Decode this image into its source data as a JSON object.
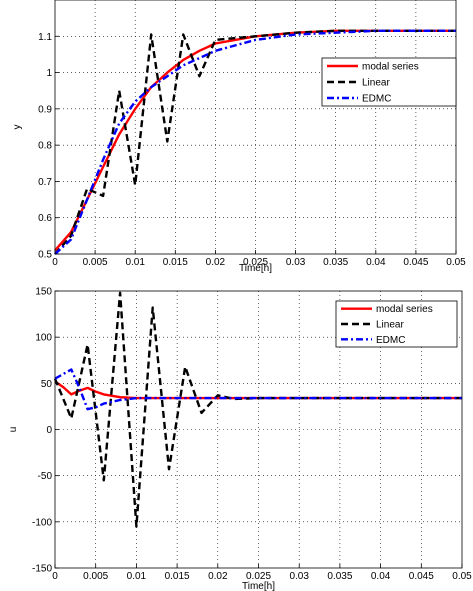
{
  "chart_data": [
    {
      "type": "line",
      "title": "",
      "xlabel": "Time[h]",
      "ylabel": "y",
      "xlim": [
        0,
        0.05
      ],
      "ylim": [
        0.5,
        1.2
      ],
      "xticks": [
        0,
        0.005,
        0.01,
        0.015,
        0.02,
        0.025,
        0.03,
        0.035,
        0.04,
        0.045,
        0.05
      ],
      "xtick_labels": [
        "0",
        "0.005",
        "0.01",
        "0.015",
        "0.02",
        "0.025",
        "0.03",
        "0.035",
        "0.04",
        "0.045",
        "0.05"
      ],
      "yticks": [
        0.5,
        0.6,
        0.7,
        0.8,
        0.9,
        1.0,
        1.1
      ],
      "ytick_labels": [
        "0.5",
        "0.6",
        "0.7",
        "0.8",
        "0.9",
        "1",
        "1.1"
      ],
      "grid": true,
      "legend_position": "top-right",
      "series": [
        {
          "name": "modal series",
          "color": "#ff0000",
          "dash": "solid",
          "x": [
            0,
            0.002,
            0.004,
            0.006,
            0.008,
            0.01,
            0.012,
            0.014,
            0.016,
            0.018,
            0.02,
            0.025,
            0.03,
            0.035,
            0.04,
            0.045,
            0.05
          ],
          "y": [
            0.51,
            0.56,
            0.65,
            0.74,
            0.83,
            0.9,
            0.96,
            1.0,
            1.035,
            1.06,
            1.08,
            1.1,
            1.11,
            1.115,
            1.115,
            1.115,
            1.115
          ]
        },
        {
          "name": "Linear",
          "color": "#000000",
          "dash": "dashed",
          "x": [
            0,
            0.002,
            0.004,
            0.006,
            0.008,
            0.01,
            0.012,
            0.014,
            0.016,
            0.018,
            0.02,
            0.025,
            0.03,
            0.035,
            0.04,
            0.045,
            0.05
          ],
          "y": [
            0.5,
            0.55,
            0.68,
            0.66,
            0.95,
            0.69,
            1.105,
            0.81,
            1.105,
            0.99,
            1.09,
            1.1,
            1.11,
            1.115,
            1.115,
            1.115,
            1.115
          ]
        },
        {
          "name": "EDMC",
          "color": "#0000ff",
          "dash": "dashdot",
          "x": [
            0,
            0.002,
            0.004,
            0.006,
            0.008,
            0.01,
            0.012,
            0.014,
            0.016,
            0.018,
            0.02,
            0.025,
            0.03,
            0.035,
            0.04,
            0.045,
            0.05
          ],
          "y": [
            0.5,
            0.54,
            0.65,
            0.76,
            0.86,
            0.92,
            0.96,
            0.99,
            1.02,
            1.04,
            1.06,
            1.09,
            1.105,
            1.11,
            1.115,
            1.115,
            1.115
          ]
        }
      ]
    },
    {
      "type": "line",
      "title": "",
      "xlabel": "Time[h]",
      "ylabel": "u",
      "xlim": [
        0,
        0.05
      ],
      "ylim": [
        -150,
        150
      ],
      "xticks": [
        0,
        0.005,
        0.01,
        0.015,
        0.02,
        0.025,
        0.03,
        0.035,
        0.04,
        0.045,
        0.05
      ],
      "xtick_labels": [
        "0",
        "0.005",
        "0.01",
        "0.015",
        "0.02",
        "0.025",
        "0.03",
        "0.035",
        "0.04",
        "0.045",
        "0.05"
      ],
      "yticks": [
        -150,
        -100,
        -50,
        0,
        50,
        100,
        150
      ],
      "ytick_labels": [
        "-150",
        "-100",
        "-50",
        "0",
        "50",
        "100",
        "150"
      ],
      "grid": true,
      "legend_position": "top-right",
      "series": [
        {
          "name": "modal series",
          "color": "#ff0000",
          "dash": "solid",
          "x": [
            0,
            0.001,
            0.002,
            0.003,
            0.004,
            0.005,
            0.006,
            0.008,
            0.01,
            0.015,
            0.02,
            0.03,
            0.04,
            0.05
          ],
          "y": [
            52,
            46,
            38,
            42,
            45,
            41,
            38,
            35,
            34,
            34,
            34,
            34,
            34,
            34
          ]
        },
        {
          "name": "Linear",
          "color": "#000000",
          "dash": "dashed",
          "x": [
            0,
            0.002,
            0.004,
            0.006,
            0.008,
            0.01,
            0.012,
            0.014,
            0.016,
            0.018,
            0.02,
            0.022,
            0.025,
            0.03,
            0.04,
            0.05
          ],
          "y": [
            55,
            12,
            92,
            -55,
            148,
            -105,
            132,
            -43,
            68,
            18,
            37,
            33,
            34,
            34,
            34,
            34
          ]
        },
        {
          "name": "EDMC",
          "color": "#0000ff",
          "dash": "dashdot",
          "x": [
            0,
            0.001,
            0.002,
            0.003,
            0.004,
            0.005,
            0.006,
            0.008,
            0.01,
            0.015,
            0.02,
            0.03,
            0.04,
            0.05
          ],
          "y": [
            55,
            60,
            65,
            45,
            22,
            24,
            28,
            32,
            34,
            34,
            34,
            34,
            34,
            34
          ]
        }
      ]
    }
  ]
}
